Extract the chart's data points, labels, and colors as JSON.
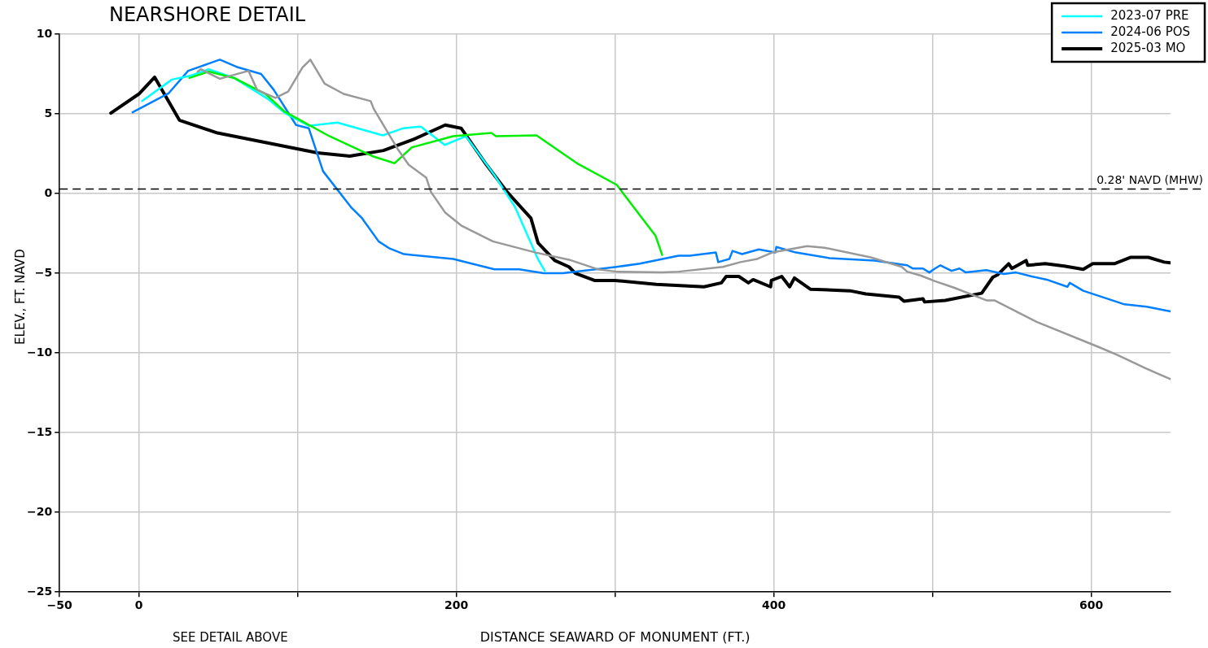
{
  "chart_data": {
    "type": "line",
    "title": "NEARSHORE DETAIL",
    "xlabel": "DISTANCE SEAWARD OF MONUMENT (FT.)",
    "ylabel": "ELEV., FT. NAVD",
    "annotations": [
      "SEE DETAIL ABOVE"
    ],
    "xlim": [
      -50,
      650
    ],
    "ylim": [
      -25,
      10
    ],
    "xticks": [
      -50,
      0,
      {
        "value": 100,
        "label": null
      },
      200,
      {
        "value": 300,
        "label": null
      },
      400,
      {
        "value": 500,
        "label": null
      },
      600
    ],
    "yticks": [
      -25,
      -20,
      -15,
      -10,
      -5,
      0,
      5,
      10
    ],
    "grid": true,
    "legend": "top right",
    "marker": "none",
    "line_style": "solid",
    "ref_lines": [
      {
        "axis": "y",
        "value": 0.28,
        "label": "0.28' NAVD (MHW)",
        "line_style": "dashed",
        "color": "#000000"
      }
    ],
    "series": [
      {
        "color": "#999999",
        "x": [
          37,
          39,
          51,
          69,
          74.5,
          86,
          94,
          103,
          108,
          117,
          129,
          146,
          148,
          163,
          170,
          181,
          184,
          193,
          203,
          223,
          250,
          271,
          289,
          301,
          329.7,
          340,
          368,
          379,
          389.6,
          399,
          421,
          432,
          461,
          480.7,
          484,
          492.7,
          501.6,
          513.5,
          534,
          539,
          565.6,
          604,
          616,
          635,
          650
        ],
        "values": [
          7.65,
          7.8,
          7.2,
          7.7,
          6.5,
          6.0,
          6.4,
          7.9,
          8.4,
          6.9,
          6.25,
          5.8,
          5.3,
          2.8,
          1.8,
          1.0,
          0.1,
          -1.2,
          -2.0,
          -3.0,
          -3.7,
          -4.15,
          -4.75,
          -4.9,
          -4.95,
          -4.9,
          -4.6,
          -4.3,
          -4.1,
          -3.7,
          -3.3,
          -3.4,
          -4.0,
          -4.6,
          -4.9,
          -5.15,
          -5.5,
          -5.9,
          -6.7,
          -6.7,
          -8.05,
          -9.6,
          -10.1,
          -11.0,
          -11.65
        ]
      },
      {
        "color": "#00ee00",
        "x": [
          31.8,
          44,
          60,
          79.7,
          91.7,
          120,
          147,
          161,
          172,
          198,
          222,
          225,
          250.5,
          276,
          301,
          325.5,
          329.7
        ],
        "values": [
          7.25,
          7.65,
          7.25,
          6.25,
          5.15,
          3.6,
          2.35,
          1.9,
          2.9,
          3.6,
          3.8,
          3.6,
          3.65,
          1.9,
          0.55,
          -2.65,
          -3.85
        ]
      },
      {
        "name": "2023-07 PRE",
        "color": "#00ffff",
        "x": [
          2,
          20.8,
          32.8,
          44,
          60,
          81,
          92,
          107,
          125,
          153.6,
          166.7,
          177.6,
          192.7,
          206,
          224,
          237,
          251.6,
          255.7
        ],
        "values": [
          5.8,
          7.15,
          7.4,
          7.8,
          7.25,
          5.95,
          5.05,
          4.25,
          4.45,
          3.65,
          4.1,
          4.2,
          3.05,
          3.6,
          1.15,
          -0.85,
          -4.15,
          -4.85
        ]
      },
      {
        "name": "2024-06 POS",
        "color": "#0080ff",
        "x": [
          -4,
          18.8,
          31,
          51,
          61.5,
          77,
          85,
          99,
          107,
          116,
          134,
          140.6,
          151,
          158,
          167,
          198,
          224,
          239.6,
          255,
          267,
          301,
          315.6,
          340,
          347,
          363.5,
          365,
          372,
          374,
          380,
          390.6,
          401,
          401.6,
          414,
          435,
          463.5,
          484,
          487.5,
          494,
          498,
          501.6,
          505,
          512,
          517,
          521,
          534,
          545,
          552.6,
          562.5,
          572,
          585,
          586.5,
          595,
          621,
          635,
          650
        ],
        "values": [
          5.1,
          6.3,
          7.7,
          8.4,
          7.95,
          7.5,
          6.5,
          4.3,
          4.1,
          1.4,
          -0.9,
          -1.55,
          -3.0,
          -3.45,
          -3.8,
          -4.1,
          -4.75,
          -4.75,
          -5.0,
          -5.0,
          -4.6,
          -4.4,
          -3.9,
          -3.9,
          -3.7,
          -4.3,
          -4.1,
          -3.6,
          -3.8,
          -3.5,
          -3.7,
          -3.35,
          -3.7,
          -4.05,
          -4.2,
          -4.5,
          -4.7,
          -4.7,
          -4.95,
          -4.7,
          -4.5,
          -4.85,
          -4.7,
          -4.95,
          -4.8,
          -5.05,
          -4.95,
          -5.2,
          -5.4,
          -5.85,
          -5.6,
          -6.1,
          -6.95,
          -7.1,
          -7.4
        ]
      },
      {
        "name": "2025-03 MO",
        "color": "#000000",
        "x": [
          -17.7,
          0,
          9.9,
          25.5,
          49.5,
          112.5,
          132.8,
          154,
          173,
          193,
          203,
          219,
          232,
          247,
          251.5,
          262,
          271,
          275,
          287,
          300,
          326,
          356,
          367,
          370,
          378,
          384,
          387,
          398,
          398.5,
          405,
          410,
          413,
          423,
          448,
          458,
          479,
          482,
          494,
          495,
          508,
          531,
          538,
          541,
          548,
          550,
          559,
          560,
          571,
          583,
          595,
          601,
          614.6,
          625,
          636,
          646,
          650
        ],
        "values": [
          5.05,
          6.25,
          7.3,
          4.6,
          3.8,
          2.55,
          2.35,
          2.7,
          3.4,
          4.3,
          4.1,
          1.8,
          0.1,
          -1.55,
          -3.1,
          -4.2,
          -4.6,
          -5.0,
          -5.45,
          -5.45,
          -5.7,
          -5.85,
          -5.6,
          -5.2,
          -5.2,
          -5.6,
          -5.4,
          -5.85,
          -5.45,
          -5.2,
          -5.85,
          -5.3,
          -6.0,
          -6.1,
          -6.3,
          -6.5,
          -6.75,
          -6.6,
          -6.8,
          -6.7,
          -6.25,
          -5.25,
          -5.1,
          -4.4,
          -4.7,
          -4.2,
          -4.5,
          -4.4,
          -4.55,
          -4.75,
          -4.4,
          -4.4,
          -4.0,
          -4.0,
          -4.3,
          -4.35
        ]
      }
    ]
  }
}
